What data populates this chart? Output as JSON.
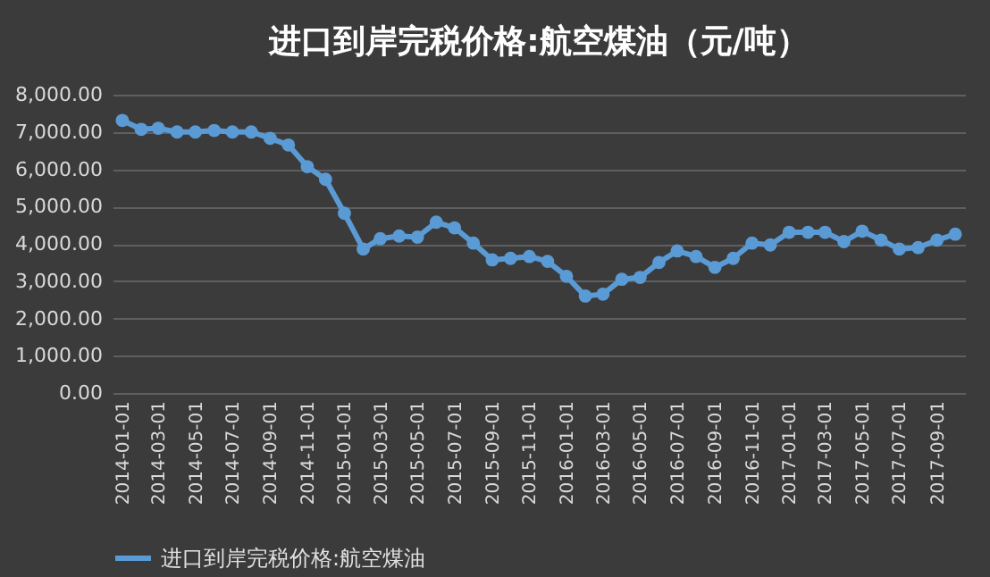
{
  "chart_data": {
    "type": "line",
    "title": "进口到岸完税价格:航空煤油（元/吨）",
    "x": [
      "2014-01-01",
      "2014-02-01",
      "2014-03-01",
      "2014-04-01",
      "2014-05-01",
      "2014-06-01",
      "2014-07-01",
      "2014-08-01",
      "2014-09-01",
      "2014-10-01",
      "2014-11-01",
      "2014-12-01",
      "2015-01-01",
      "2015-02-01",
      "2015-03-01",
      "2015-04-01",
      "2015-05-01",
      "2015-06-01",
      "2015-07-01",
      "2015-08-01",
      "2015-09-01",
      "2015-10-01",
      "2015-11-01",
      "2015-12-01",
      "2016-01-01",
      "2016-02-01",
      "2016-03-01",
      "2016-04-01",
      "2016-05-01",
      "2016-06-01",
      "2016-07-01",
      "2016-08-01",
      "2016-09-01",
      "2016-10-01",
      "2016-11-01",
      "2016-12-01",
      "2017-01-01",
      "2017-02-01",
      "2017-03-01",
      "2017-04-01",
      "2017-05-01",
      "2017-06-01",
      "2017-07-01",
      "2017-08-01",
      "2017-09-01",
      "2017-10-01"
    ],
    "series": [
      {
        "name": "进口到岸完税价格:航空煤油",
        "color": "#5b9bd5",
        "values": [
          7310,
          7070,
          7100,
          7000,
          7000,
          7040,
          7000,
          7000,
          6830,
          6650,
          6070,
          5730,
          4820,
          3860,
          4140,
          4210,
          4180,
          4580,
          4430,
          4020,
          3570,
          3610,
          3660,
          3530,
          3130,
          2600,
          2650,
          3050,
          3100,
          3500,
          3810,
          3660,
          3370,
          3610,
          4020,
          3970,
          4310,
          4310,
          4310,
          4060,
          4340,
          4100,
          3860,
          3900,
          4100,
          4260
        ]
      }
    ],
    "xlim": [
      "2013-12-16",
      "2017-10-17"
    ],
    "xticks": [
      "2014-01-01",
      "2014-03-01",
      "2014-05-01",
      "2014-07-01",
      "2014-09-01",
      "2014-11-01",
      "2015-01-01",
      "2015-03-01",
      "2015-05-01",
      "2015-07-01",
      "2015-09-01",
      "2015-11-01",
      "2016-01-01",
      "2016-03-01",
      "2016-05-01",
      "2016-07-01",
      "2016-09-01",
      "2016-11-01",
      "2017-01-01",
      "2017-03-01",
      "2017-05-01",
      "2017-07-01",
      "2017-09-01"
    ],
    "ylim": [
      0,
      8000
    ],
    "yticks": [
      {
        "value": 0,
        "label": "0.00"
      },
      {
        "value": 1000,
        "label": "1,000.00"
      },
      {
        "value": 2000,
        "label": "2,000.00"
      },
      {
        "value": 3000,
        "label": "3,000.00"
      },
      {
        "value": 4000,
        "label": "4,000.00"
      },
      {
        "value": 5000,
        "label": "5,000.00"
      },
      {
        "value": 6000,
        "label": "6,000.00"
      },
      {
        "value": 7000,
        "label": "7,000.00"
      },
      {
        "value": 8000,
        "label": "8,000.00"
      }
    ],
    "grid": "y",
    "legend": "bottom",
    "marker": "circle",
    "line_style": "solid"
  }
}
